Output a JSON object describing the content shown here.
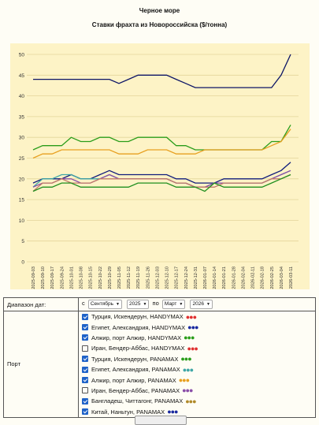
{
  "header": {
    "title": "Черное море",
    "subtitle": "Ставки фрахта из Новороссийска ($/тонна)"
  },
  "chart_data": {
    "type": "line",
    "title": "Черное море",
    "subtitle": "Ставки фрахта из Новороссийска ($/тонна)",
    "xlabel": "",
    "ylabel": "",
    "ylim": [
      0,
      50
    ],
    "yticks": [
      "0",
      "5",
      "10",
      "15",
      "20",
      "25",
      "30",
      "35",
      "40",
      "45",
      "50"
    ],
    "grid": true,
    "x": [
      "2025-09-03",
      "2025-09-10",
      "2025-09-17",
      "2025-09-24",
      "2025-10-01",
      "2025-10-08",
      "2025-10-15",
      "2025-10-22",
      "2025-10-29",
      "2025-11-05",
      "2025-11-12",
      "2025-11-19",
      "2025-11-26",
      "2025-12-03",
      "2025-12-10",
      "2025-12-17",
      "2025-12-24",
      "2025-12-31",
      "2026-01-07",
      "2026-01-14",
      "2026-01-21",
      "2026-01-28",
      "2026-02-04",
      "2026-02-11",
      "2026-02-18",
      "2026-02-25",
      "2026-03-04",
      "2026-03-11"
    ],
    "series": [
      {
        "name": "Китай, Наньтун, PANAMAX",
        "color": "#0d1566",
        "values": [
          44,
          44,
          44,
          44,
          44,
          44,
          44,
          44,
          44,
          43,
          44,
          45,
          45,
          45,
          45,
          44,
          43,
          42,
          42,
          42,
          42,
          42,
          42,
          42,
          42,
          42,
          45,
          50
        ]
      },
      {
        "name": "Турция, Искендерун, PANAMAX",
        "color": "#2a9d1a",
        "values": [
          27,
          28,
          28,
          28,
          30,
          29,
          29,
          30,
          30,
          29,
          29,
          30,
          30,
          30,
          30,
          28,
          28,
          27,
          27,
          27,
          27,
          27,
          27,
          27,
          27,
          29,
          29,
          33
        ]
      },
      {
        "name": "Турция, Искендерун, HANDYMAX",
        "color": "#e8a020",
        "values": [
          25,
          26,
          26,
          27,
          27,
          27,
          27,
          27,
          27,
          26,
          26,
          26,
          27,
          27,
          27,
          26,
          26,
          26,
          27,
          27,
          27,
          27,
          27,
          27,
          27,
          28,
          29,
          32
        ]
      },
      {
        "name": "Египет, Александрия, HANDYMAX",
        "color": "#101c7c",
        "values": [
          19,
          20,
          20,
          20,
          21,
          20,
          20,
          21,
          22,
          21,
          21,
          21,
          21,
          21,
          21,
          20,
          20,
          19,
          19,
          19,
          20,
          20,
          20,
          20,
          20,
          21,
          22,
          24
        ]
      },
      {
        "name": "Египет, Александрия, PANAMAX",
        "color": "#3fa7a7",
        "values": [
          18,
          20,
          20,
          21,
          21,
          20,
          20,
          20,
          21,
          20,
          20,
          20,
          20,
          20,
          20,
          19,
          19,
          18,
          18,
          19,
          19,
          19,
          19,
          19,
          19,
          20,
          21,
          22
        ]
      },
      {
        "name": "Алжир, порт Алжир, HANDYMAX",
        "color": "#8a4ea8",
        "values": [
          18,
          19,
          19,
          20,
          20,
          19,
          19,
          20,
          21,
          20,
          20,
          20,
          20,
          20,
          20,
          19,
          19,
          18,
          18,
          19,
          19,
          19,
          19,
          19,
          19,
          20,
          21,
          22
        ]
      },
      {
        "name": "Бангладеш, Читтагонг, PANAMAX",
        "color": "#c07a6a",
        "values": [
          17,
          19,
          19,
          20,
          19,
          19,
          19,
          20,
          20,
          20,
          20,
          20,
          20,
          20,
          20,
          19,
          19,
          18,
          18,
          18,
          19,
          19,
          19,
          19,
          19,
          20,
          20,
          21
        ]
      },
      {
        "name": "Алжир, порт Алжир, PANAMAX",
        "color": "#1f8f1f",
        "values": [
          17,
          18,
          18,
          19,
          19,
          18,
          18,
          18,
          18,
          18,
          18,
          19,
          19,
          19,
          19,
          18,
          18,
          18,
          17,
          19,
          18,
          18,
          18,
          18,
          18,
          19,
          20,
          21
        ]
      }
    ]
  },
  "controls": {
    "date_range_label": "Диапазон дат:",
    "from_label": "с",
    "from_month": "Сентябрь",
    "from_year": "2025",
    "to_label": "по",
    "to_month": "Март",
    "to_year": "2026",
    "port_label": "Порт",
    "ports": [
      {
        "label": "Турция, Искендерун, HANDYMAX",
        "checked": true,
        "dot_color": "#e03030"
      },
      {
        "label": "Египет, Александрия, HANDYMAX",
        "checked": true,
        "dot_color": "#1a2aa0"
      },
      {
        "label": "Алжир, порт Алжир, HANDYMAX",
        "checked": true,
        "dot_color": "#2a9d1a"
      },
      {
        "label": "Иран, Бендер-Аббас, HANDYMAX",
        "checked": false,
        "dot_color": "#e03030"
      },
      {
        "label": "Турция, Искендерун, PANAMAX",
        "checked": true,
        "dot_color": "#2a9d1a"
      },
      {
        "label": "Египет, Александрия, PANAMAX",
        "checked": true,
        "dot_color": "#3fa7a7"
      },
      {
        "label": "Алжир, порт Алжир, PANAMAX",
        "checked": true,
        "dot_color": "#e8a020"
      },
      {
        "label": "Иран, Бендер-Аббас, PANAMAX",
        "checked": false,
        "dot_color": "#8a4ea8"
      },
      {
        "label": "Бангладеш, Читтагонг, PANAMAX",
        "checked": true,
        "dot_color": "#b08a2a"
      },
      {
        "label": "Китай, Наньтун, PANAMAX",
        "checked": true,
        "dot_color": "#1a2aa0"
      }
    ]
  }
}
